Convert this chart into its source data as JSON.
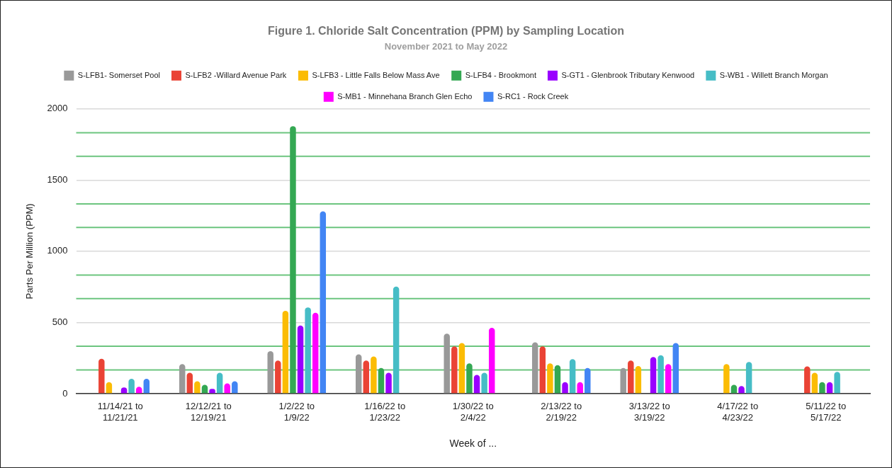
{
  "chart_data": {
    "type": "bar",
    "title": "Figure 1. Chloride Salt Concentration (PPM) by Sampling Location",
    "subtitle": "November 2021 to May 2022",
    "xlabel": "Week of ...",
    "ylabel": "Parts Per Million (PPM)",
    "categories": [
      "11/14/21 to 11/21/21",
      "12/12/21 to 12/19/21",
      "1/2/22 to 1/9/22",
      "1/16/22 to 1/23/22",
      "1/30/22 to 2/4/22",
      "2/13/22 to 2/19/22",
      "3/13/22 to 3/19/22",
      "4/17/22 to 4/23/22",
      "5/11/22 to 5/17/22"
    ],
    "series": [
      {
        "name": "S-LFB1- Somerset Pool",
        "color": "#999999",
        "values": [
          null,
          208,
          298,
          276,
          421,
          361,
          180,
          null,
          null
        ]
      },
      {
        "name": "S-LFB2 -Willard Avenue Park",
        "color": "#ea4335",
        "values": [
          245,
          147,
          232,
          232,
          332,
          332,
          232,
          null,
          191
        ]
      },
      {
        "name": "S-LFB3 - Little Falls Below Mass Ave",
        "color": "#fbbc04",
        "values": [
          81,
          87,
          582,
          261,
          355,
          213,
          194,
          208,
          147
        ]
      },
      {
        "name": "S-LFB4 - Brookmont",
        "color": "#34a853",
        "values": [
          null,
          62,
          1879,
          180,
          213,
          200,
          null,
          62,
          81
        ]
      },
      {
        "name": "S-GT1 - Glenbrook Tributary Kenwood",
        "color": "#9900ff",
        "values": [
          44,
          34,
          478,
          147,
          132,
          81,
          257,
          53,
          81
        ]
      },
      {
        "name": "S-WB1 - Willett Branch Morgan",
        "color": "#46bdc6",
        "values": [
          104,
          147,
          606,
          752,
          147,
          242,
          270,
          223,
          153
        ]
      },
      {
        "name": "S-MB1 - Minnehana Branch Glen Echo",
        "color": "#ff00ff",
        "values": [
          49,
          72,
          568,
          null,
          463,
          81,
          208,
          null,
          null
        ]
      },
      {
        "name": "S-RC1 - Rock Creek",
        "color": "#4285f4",
        "values": [
          104,
          87,
          1280,
          null,
          null,
          180,
          355,
          null,
          null
        ]
      }
    ],
    "ylim": [
      0,
      2000
    ],
    "yticks": [
      0,
      500,
      1000,
      1500,
      2000
    ],
    "grid": "y",
    "legend": "top",
    "ref_lines": [
      {
        "axis": "y",
        "value": 167,
        "color": "#6cc57f"
      },
      {
        "axis": "y",
        "value": 333,
        "color": "#6cc57f"
      },
      {
        "axis": "y",
        "value": 667,
        "color": "#6cc57f"
      },
      {
        "axis": "y",
        "value": 833,
        "color": "#6cc57f"
      },
      {
        "axis": "y",
        "value": 1167,
        "color": "#6cc57f"
      },
      {
        "axis": "y",
        "value": 1333,
        "color": "#6cc57f"
      },
      {
        "axis": "y",
        "value": 1667,
        "color": "#6cc57f"
      },
      {
        "axis": "y",
        "value": 1833,
        "color": "#6cc57f"
      }
    ]
  }
}
